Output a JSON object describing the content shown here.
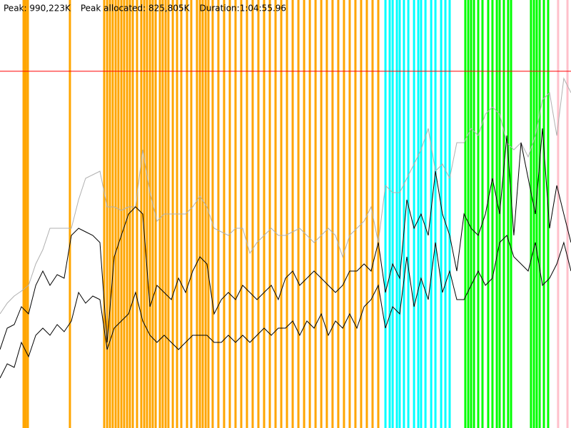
{
  "chart_data": {
    "type": "line",
    "stats": [
      {
        "value": 990223,
        "label": "Peak: 990,223K"
      },
      "Peak allocated: 825,805K",
      "Duration:1:04:55.96"
    ],
    "peak_color": "#ff0000",
    "xlim": [
      0,
      3896
    ],
    "ylim": [
      0,
      1188000
    ],
    "events": [
      {
        "color": "#ffa500",
        "x": [
          161,
          175,
          190,
          477,
          711,
          731,
          750,
          769,
          789,
          808,
          828,
          847,
          867,
          886,
          906,
          935,
          964,
          984,
          1003,
          1023,
          1042,
          1062,
          1091,
          1110,
          1130,
          1149,
          1179,
          1208,
          1237,
          1276,
          1305,
          1344,
          1364,
          1383,
          1403,
          1422,
          1451,
          1490,
          1529,
          1568,
          1607,
          1646,
          1685,
          1724,
          1763,
          1802,
          1841,
          1880,
          1919,
          1958,
          1997,
          2036,
          2075,
          2114,
          2153,
          2192,
          2230,
          2269,
          2308,
          2347,
          2386,
          2425,
          2464,
          2503,
          2542,
          2581
        ]
      },
      {
        "color": "#00ffff",
        "x": [
          2630,
          2659,
          2679,
          2708,
          2727,
          2756,
          2786,
          2825,
          2854,
          2873,
          2903,
          2942,
          2971,
          3010,
          3039,
          3068
        ]
      },
      {
        "color": "#00ff00",
        "x": [
          3175,
          3195,
          3214,
          3234,
          3263,
          3292,
          3331,
          3360,
          3390,
          3409,
          3438,
          3467,
          3487,
          3623,
          3643,
          3662,
          3682,
          3711,
          3740
        ]
      },
      {
        "color": "#ffc0cb",
        "x": [
          3808,
          3872
        ]
      }
    ],
    "x": [
      0,
      49,
      97,
      146,
      195,
      244,
      292,
      341,
      390,
      438,
      487,
      536,
      584,
      633,
      682,
      731,
      779,
      828,
      877,
      925,
      974,
      1023,
      1071,
      1120,
      1169,
      1218,
      1266,
      1315,
      1364,
      1412,
      1461,
      1510,
      1558,
      1607,
      1656,
      1705,
      1753,
      1802,
      1851,
      1899,
      1948,
      1997,
      2045,
      2094,
      2143,
      2192,
      2240,
      2289,
      2338,
      2386,
      2435,
      2484,
      2532,
      2581,
      2630,
      2679,
      2727,
      2776,
      2825,
      2873,
      2922,
      2971,
      3019,
      3068,
      3117,
      3166,
      3214,
      3263,
      3312,
      3360,
      3409,
      3458,
      3506,
      3555,
      3604,
      3653,
      3701,
      3750,
      3799,
      3847,
      3896
    ],
    "series": [
      {
        "color": "#b0b0b0",
        "values": [
          316800,
          346500,
          366300,
          380160,
          396000,
          455400,
          495000,
          554400,
          554400,
          554400,
          554400,
          633600,
          693000,
          702900,
          712800,
          613800,
          613800,
          603900,
          613800,
          613800,
          772200,
          653400,
          574200,
          594000,
          594000,
          594000,
          594000,
          613800,
          643500,
          613800,
          554400,
          544500,
          534600,
          554400,
          554400,
          485100,
          514800,
          534600,
          554400,
          534600,
          534600,
          544500,
          554400,
          534600,
          514800,
          534600,
          554400,
          534600,
          475200,
          534600,
          554400,
          574200,
          613800,
          514800,
          673200,
          653400,
          653400,
          693000,
          732600,
          772200,
          831600,
          712800,
          732600,
          693000,
          792000,
          792000,
          831600,
          811800,
          871200,
          891000,
          871200,
          792000,
          772200,
          792000,
          752400,
          811800,
          910800,
          930600,
          811800,
          970200,
          930600
        ]
      },
      {
        "color": "#000000",
        "values": [
          217800,
          277200,
          287100,
          336600,
          316800,
          396000,
          435600,
          396000,
          425700,
          415800,
          534600,
          554400,
          544500,
          534600,
          514800,
          237600,
          475200,
          534600,
          594000,
          613800,
          594000,
          336600,
          396000,
          376200,
          356400,
          415800,
          376200,
          435600,
          475200,
          455400,
          316800,
          356400,
          376200,
          356400,
          396000,
          376200,
          356400,
          376200,
          396000,
          356400,
          415800,
          435600,
          396000,
          415800,
          435600,
          415800,
          396000,
          376200,
          396000,
          435600,
          435600,
          455400,
          435600,
          514800,
          376200,
          455400,
          415800,
          633600,
          554400,
          594000,
          534600,
          712800,
          594000,
          534600,
          435600,
          594000,
          554400,
          534600,
          594000,
          693000,
          594000,
          811800,
          534600,
          792000,
          693000,
          594000,
          831600,
          554400,
          673200,
          594000,
          514800
        ]
      },
      {
        "color": "#000000",
        "values": [
          138600,
          178200,
          168300,
          237600,
          198000,
          257400,
          277200,
          257400,
          287100,
          267300,
          297000,
          376200,
          346500,
          366300,
          356400,
          217800,
          277200,
          297000,
          316800,
          376200,
          297000,
          257400,
          237600,
          257400,
          237600,
          217800,
          237600,
          257400,
          257400,
          257400,
          237600,
          237600,
          257400,
          237600,
          257400,
          237600,
          257400,
          277200,
          257400,
          277200,
          277200,
          297000,
          257400,
          297000,
          277200,
          316800,
          257400,
          297000,
          277200,
          316800,
          277200,
          336600,
          356400,
          396000,
          277200,
          336600,
          316800,
          475200,
          336600,
          415800,
          356400,
          514800,
          376200,
          435600,
          356400,
          356400,
          396000,
          435600,
          396000,
          415800,
          514800,
          534600,
          475200,
          455400,
          435600,
          514800,
          396000,
          415800,
          455400,
          514800,
          435600
        ]
      }
    ]
  }
}
